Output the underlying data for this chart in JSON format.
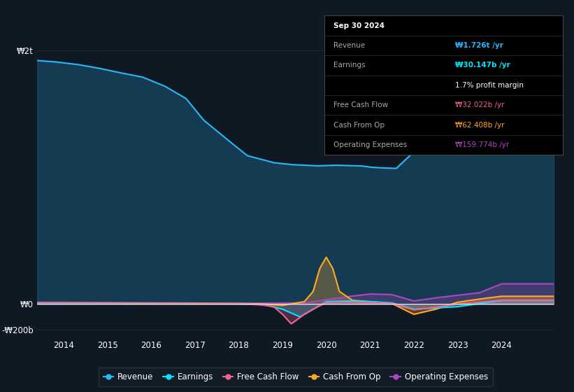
{
  "bg_color": "#0f1923",
  "plot_bg_color": "#0f1923",
  "grid_color": "#1e2d3d",
  "title": "Sep 30 2024",
  "revenue_color": "#29b6f6",
  "earnings_color": "#00e5ff",
  "fcf_color": "#f06292",
  "cfo_color": "#ffa726",
  "opex_color": "#ab47bc",
  "revenue_label": "Revenue",
  "earnings_label": "Earnings",
  "fcf_label": "Free Cash Flow",
  "cfo_label": "Cash From Op",
  "opex_label": "Operating Expenses",
  "tooltip_title": "Sep 30 2024",
  "tooltip_revenue_val": "₩1.726t /yr",
  "tooltip_earnings_val": "₩30.147b /yr",
  "tooltip_margin": "1.7% profit margin",
  "tooltip_fcf_val": "₩32.022b /yr",
  "tooltip_cfo_val": "₩62.408b /yr",
  "tooltip_opex_val": "₩159.774b /yr",
  "ytick_labels": [
    "₩2t",
    "₩0",
    "-₩200b"
  ],
  "ytick_vals": [
    2000,
    0,
    -200
  ],
  "xtick_vals": [
    2014,
    2015,
    2016,
    2017,
    2018,
    2019,
    2020,
    2021,
    2022,
    2023,
    2024
  ],
  "xlim": [
    2013.4,
    2025.2
  ],
  "ylim": [
    -260,
    2150
  ],
  "fill_alpha": 0.3,
  "line_width": 1.5
}
